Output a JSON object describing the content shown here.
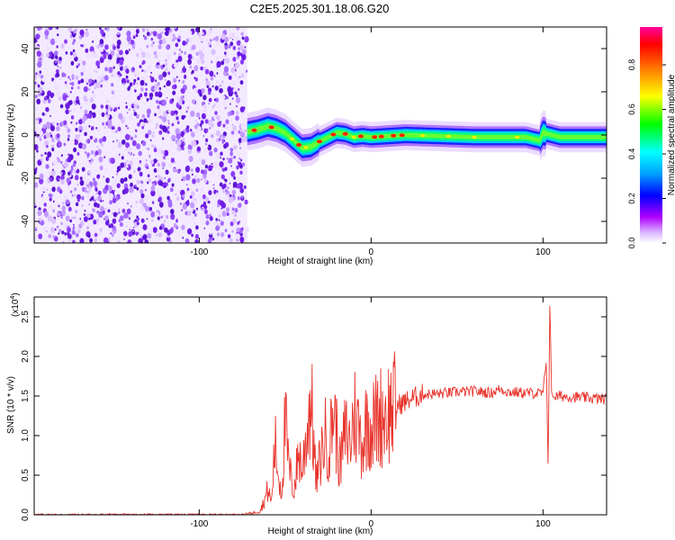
{
  "title": "C2E5.2025.301.18.06.G20",
  "chart_data": [
    {
      "type": "heatmap",
      "name": "spectrogram",
      "xlabel": "Height of straight line (km)",
      "ylabel": "Frequency (Hz)",
      "xlim": [
        -196,
        137
      ],
      "ylim": [
        -50,
        50
      ],
      "xticks": [
        -100,
        0,
        100
      ],
      "xtick_labels": [
        "-100",
        "0",
        "100"
      ],
      "yticks": [
        -40,
        -20,
        0,
        20,
        40
      ],
      "ytick_labels": [
        "-40",
        "-20",
        "0",
        "20",
        "40"
      ],
      "noise_region": [
        -196,
        -72
      ],
      "ridge": {
        "x": [
          -72,
          -66,
          -60,
          -55,
          -50,
          -45,
          -40,
          -35,
          -30,
          -25,
          -20,
          -15,
          -10,
          -5,
          0,
          10,
          20,
          40,
          60,
          80,
          90,
          98,
          100,
          110,
          137
        ],
        "hz": [
          1.5,
          2.5,
          4,
          3,
          1,
          -2.5,
          -6,
          -5.5,
          -3,
          -1,
          1,
          0.5,
          -1,
          -0.5,
          -1,
          -0.5,
          0,
          -0.5,
          -1,
          -1,
          -1,
          -2.5,
          1,
          -1,
          -1
        ]
      },
      "colorbar": {
        "label": "Normalized spectral amplitude",
        "ticks": [
          0.0,
          0.2,
          0.4,
          0.6,
          0.8
        ],
        "tick_labels": [
          "0.0",
          "0.2",
          "0.4",
          "0.6",
          "0.8"
        ],
        "range": [
          0,
          0.97
        ],
        "colors": [
          "#ffffff",
          "#b000ff",
          "#0000ff",
          "#00ffff",
          "#00ff00",
          "#ffff00",
          "#ff8000",
          "#ff0000",
          "#ff00a0"
        ]
      }
    },
    {
      "type": "line",
      "name": "snr",
      "xlabel": "Height of straight line (km)",
      "ylabel": "SNR (10 * v/v)",
      "scale_label": "(x10",
      "scale_exp": "4",
      "scale_close": ")",
      "xlim": [
        -196,
        137
      ],
      "ylim": [
        0,
        27500
      ],
      "xticks": [
        -100,
        0,
        100
      ],
      "xtick_labels": [
        "-100",
        "0",
        "100"
      ],
      "yticks": [
        0,
        5000,
        10000,
        15000,
        20000,
        25000
      ],
      "ytick_labels": [
        "0.0",
        "0.5",
        "1.0",
        "1.5",
        "2.0",
        "2.5"
      ],
      "color": "#e8342c",
      "x": [
        -196,
        -75,
        -65,
        -62,
        -60,
        -58,
        -56,
        -54,
        -52,
        -50,
        -48,
        -45,
        -42,
        -40,
        -38,
        -35,
        -32,
        -30,
        -27,
        -24,
        -22,
        -18,
        -15,
        -12,
        -10,
        -8,
        -5,
        -2,
        0,
        5,
        10,
        15,
        20,
        25,
        30,
        40,
        50,
        60,
        70,
        75,
        80,
        90,
        100,
        102,
        103,
        104,
        105,
        106,
        110,
        137
      ],
      "y": [
        0,
        0,
        400,
        1800,
        3200,
        1500,
        9000,
        5200,
        2800,
        12000,
        6000,
        3000,
        8000,
        5500,
        9500,
        15000,
        4000,
        6500,
        10000,
        8500,
        14000,
        6000,
        10500,
        9000,
        13000,
        11500,
        9000,
        12500,
        11000,
        12500,
        13000,
        13800,
        14300,
        14800,
        15200,
        15300,
        15500,
        15600,
        15400,
        15900,
        15500,
        15400,
        15300,
        19500,
        5000,
        27500,
        15500,
        14800,
        15000,
        14600
      ]
    }
  ]
}
